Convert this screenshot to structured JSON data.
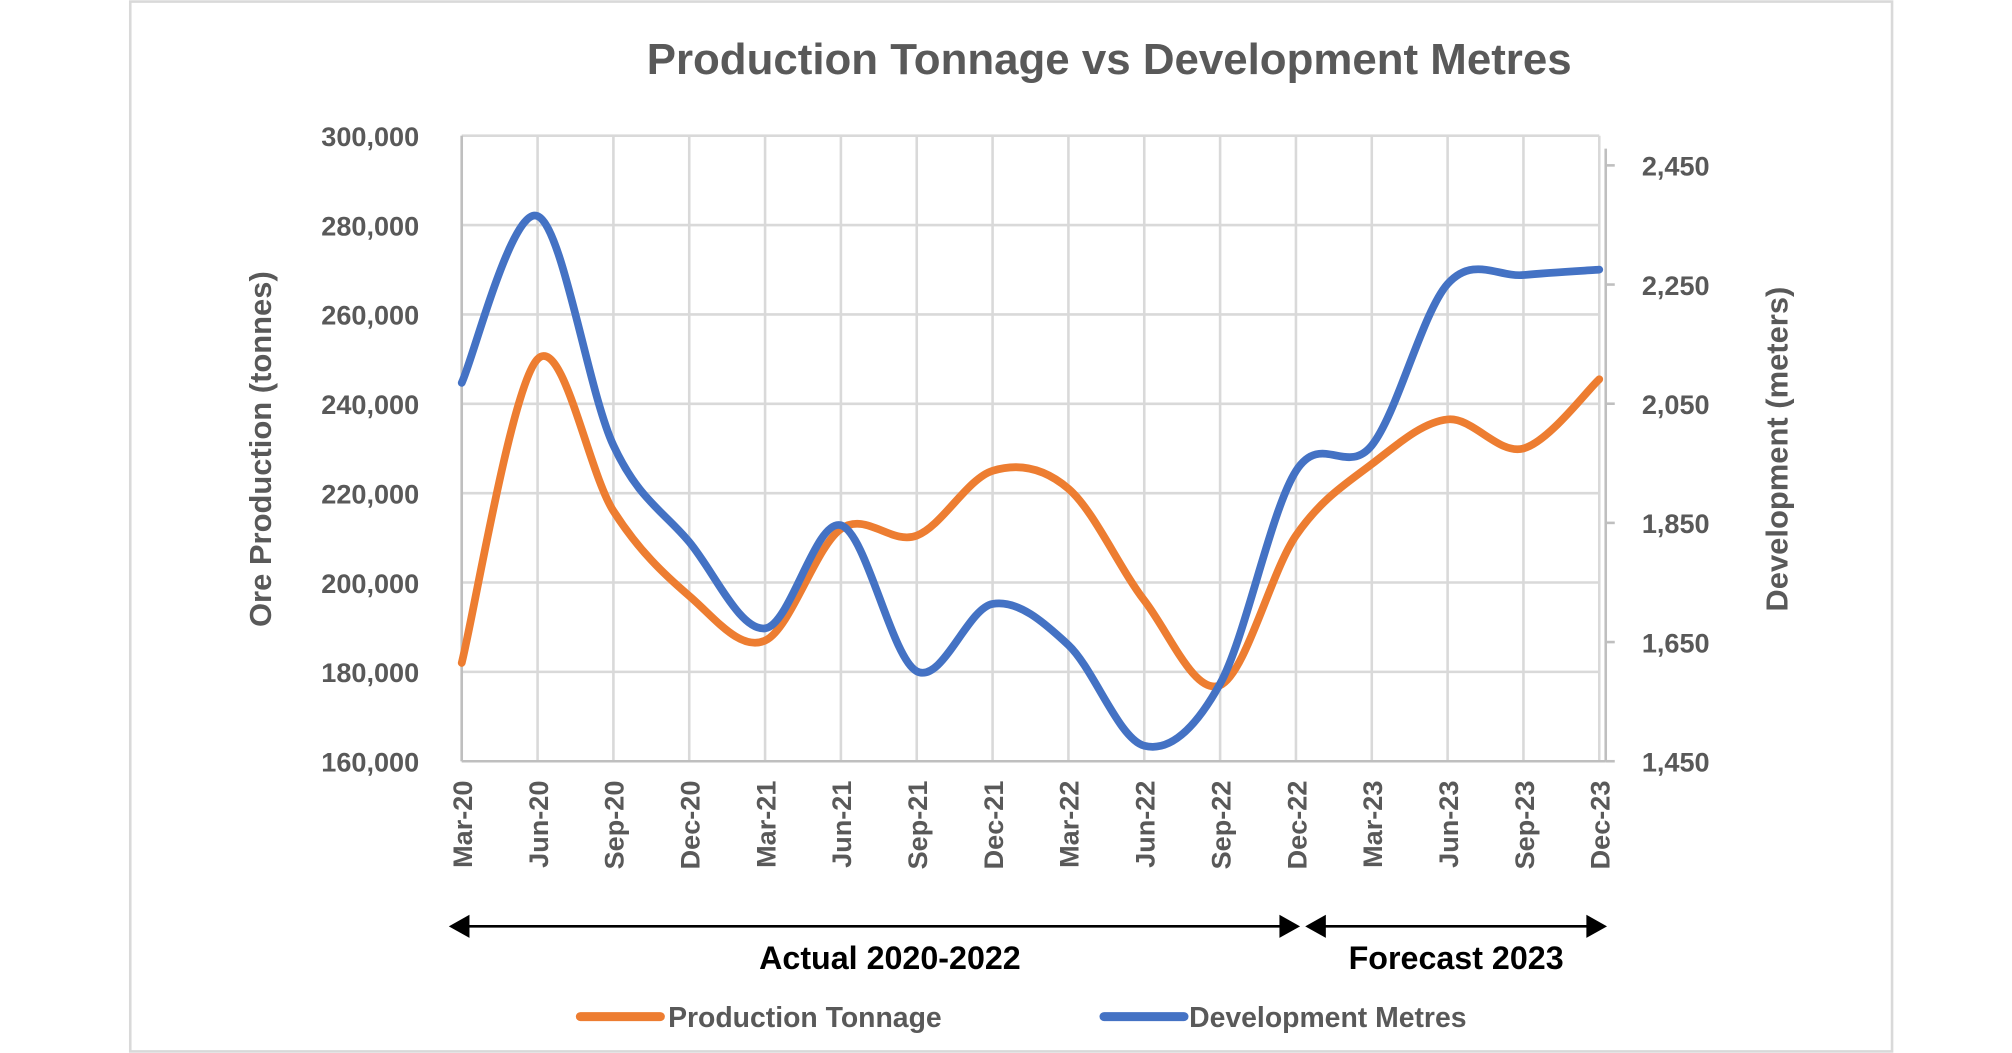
{
  "chart_data": {
    "type": "line",
    "title": "Production Tonnage vs Development Metres",
    "categories": [
      "Mar-20",
      "Jun-20",
      "Sep-20",
      "Dec-20",
      "Mar-21",
      "Jun-21",
      "Sep-21",
      "Dec-21",
      "Mar-22",
      "Jun-22",
      "Sep-22",
      "Dec-22",
      "Mar-23",
      "Jun-23",
      "Sep-23",
      "Dec-23"
    ],
    "ylabel": "Ore Production (tonnes)",
    "y2label": "Development (meters)",
    "ylim": [
      160000,
      300000
    ],
    "y2lim": [
      1450,
      2450
    ],
    "yticks": [
      "160,000",
      "180,000",
      "200,000",
      "220,000",
      "240,000",
      "260,000",
      "280,000",
      "300,000"
    ],
    "y2ticks": [
      "1,450",
      "1,650",
      "1,850",
      "2,050",
      "2,250",
      "2,450"
    ],
    "grid": true,
    "legend_placement": "bottom",
    "series": [
      {
        "name": "Production Tonnage",
        "axis": "left",
        "color": "#ED7D31",
        "values": [
          182000,
          250000,
          216000,
          197000,
          187000,
          212000,
          210500,
          225000,
          221000,
          196000,
          177000,
          210500,
          226500,
          236500,
          230000,
          245500
        ]
      },
      {
        "name": "Development Metres",
        "axis": "right",
        "color": "#4472C4",
        "values": [
          2085,
          2365,
          1980,
          1818,
          1673,
          1846,
          1601,
          1714,
          1645,
          1476,
          1580,
          1937,
          1980,
          2251,
          2266,
          2275
        ]
      }
    ],
    "annotations": [
      {
        "text": "Actual 2020-2022",
        "from": "Mar-20",
        "to": "Dec-22"
      },
      {
        "text": "Forecast 2023",
        "from": "Dec-22",
        "to": "Dec-23"
      }
    ]
  }
}
